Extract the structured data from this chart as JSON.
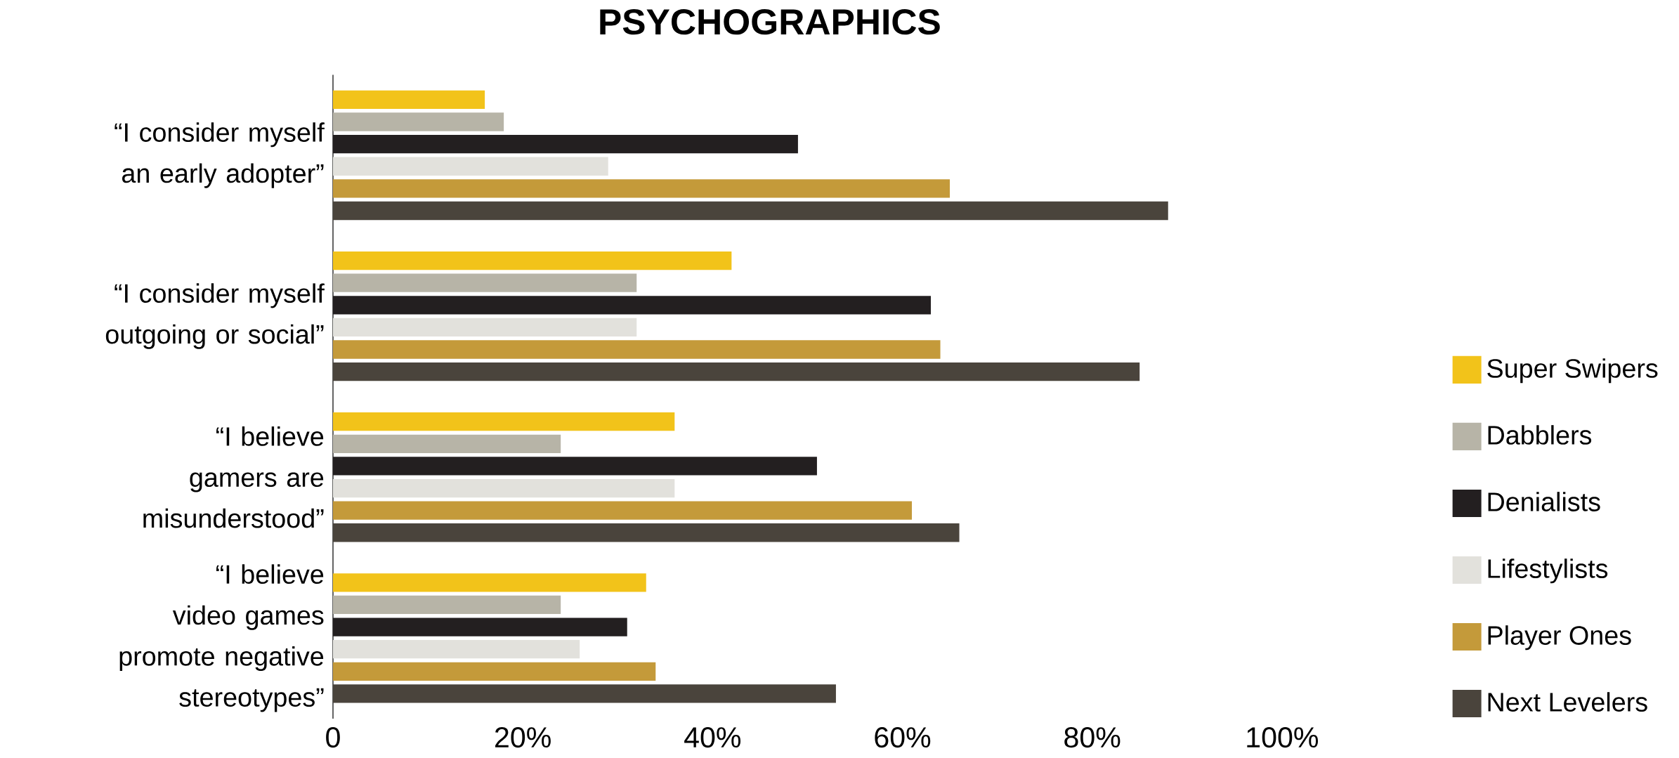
{
  "chart_data": {
    "type": "bar",
    "orientation": "horizontal",
    "title": "PSYCHOGRAPHICS",
    "categories": [
      "“I consider myself an early adopter”",
      "“I consider myself outgoing or social”",
      "“I believe gamers are misunderstood”",
      "“I believe video games promote negative stereotypes”"
    ],
    "series": [
      {
        "name": "Super Swipers",
        "color": "#f2c31a",
        "values": [
          16,
          42,
          36,
          33
        ]
      },
      {
        "name": "Dabblers",
        "color": "#b7b4a7",
        "values": [
          18,
          32,
          24,
          24
        ]
      },
      {
        "name": "Denialists",
        "color": "#231f20",
        "values": [
          49,
          63,
          51,
          31
        ]
      },
      {
        "name": "Lifestylists",
        "color": "#e2e1dc",
        "values": [
          29,
          32,
          36,
          26
        ]
      },
      {
        "name": "Player Ones",
        "color": "#c49a3a",
        "values": [
          65,
          64,
          61,
          34
        ]
      },
      {
        "name": "Next Levelers",
        "color": "#4a443c",
        "values": [
          88,
          85,
          66,
          53
        ]
      }
    ],
    "xlim": [
      0,
      100
    ],
    "xticks": [
      0,
      {
        "value": 20,
        "label": "20%"
      },
      {
        "value": 40,
        "label": "40%"
      },
      {
        "value": 60,
        "label": "60%"
      },
      {
        "value": 80,
        "label": "80%"
      },
      {
        "value": 100,
        "label": "100%"
      }
    ],
    "legend": "right"
  }
}
